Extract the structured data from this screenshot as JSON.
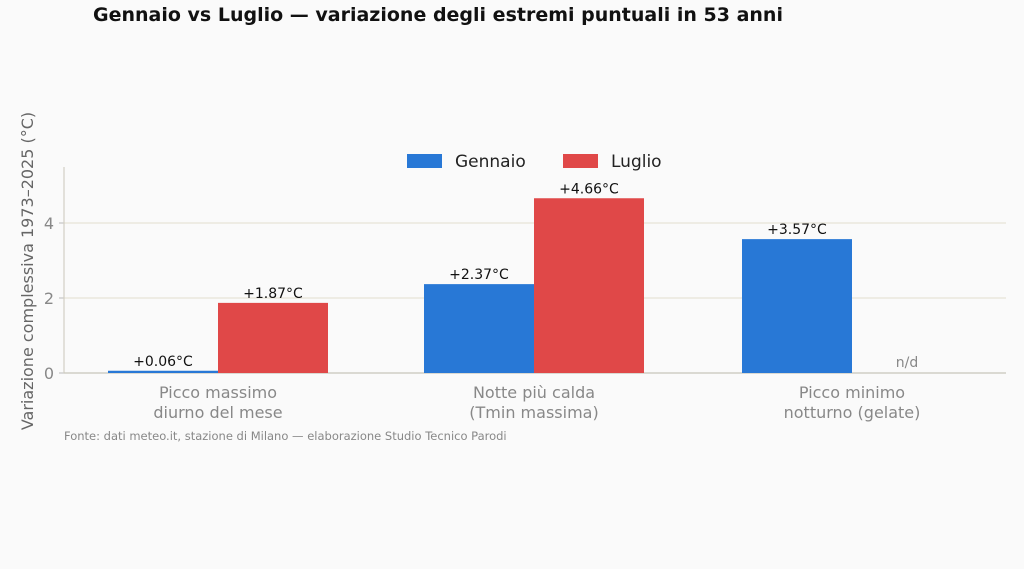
{
  "chart_data": {
    "type": "bar",
    "title": "Gennaio vs Luglio — variazione degli estremi puntuali in 53 anni",
    "ylabel": "Variazione complessiva 1973–2025 (°C)",
    "categories": [
      [
        "Picco massimo",
        "diurno del mese"
      ],
      [
        "Notte più calda",
        "(Tmin massima)"
      ],
      [
        "Picco minimo",
        "notturno (gelate)"
      ]
    ],
    "series": [
      {
        "name": "Gennaio",
        "color": "#2878d6",
        "values": [
          0.06,
          2.37,
          3.57
        ],
        "labels": [
          "+0.06°C",
          "+2.37°C",
          "+3.57°C"
        ]
      },
      {
        "name": "Luglio",
        "color": "#e04848",
        "values": [
          1.87,
          4.66,
          null
        ],
        "labels": [
          "+1.87°C",
          "+4.66°C",
          "n/d"
        ]
      }
    ],
    "yticks": [
      0,
      2,
      4
    ],
    "ylim": [
      0,
      5.5
    ],
    "grid": "horizontal",
    "legend": "top-center",
    "source": "Fonte: dati meteo.it, stazione di Milano — elaborazione Studio Tecnico Parodi"
  }
}
